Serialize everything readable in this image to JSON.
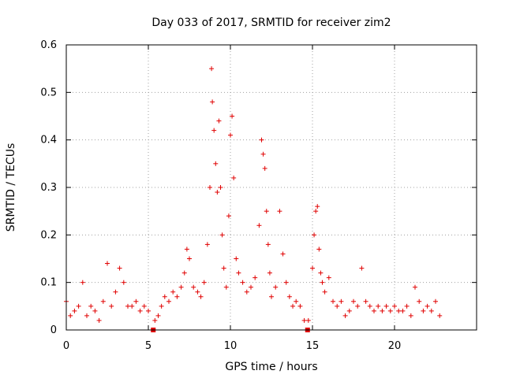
{
  "chart_data": {
    "type": "scatter",
    "title": "Day 033 of 2017, SRMTID for receiver zim2",
    "xlabel": "GPS time / hours",
    "ylabel": "SRMTID / TECUs",
    "xlim": [
      0,
      25
    ],
    "ylim": [
      0,
      0.6
    ],
    "x_ticks": [
      "0",
      "5",
      "10",
      "15",
      "20"
    ],
    "y_ticks": [
      "0",
      "0.1",
      "0.2",
      "0.3",
      "0.4",
      "0.5",
      "0.6"
    ],
    "grid": true,
    "marker": "plus",
    "color": "#e00000",
    "series": [
      {
        "name": "SRMTID",
        "x": [
          0.0,
          0.25,
          0.5,
          0.75,
          1.0,
          1.25,
          1.5,
          1.75,
          2.0,
          2.25,
          2.5,
          2.75,
          3.0,
          3.25,
          3.5,
          3.75,
          4.0,
          4.25,
          4.5,
          4.75,
          5.0,
          5.4,
          5.6,
          5.8,
          6.0,
          6.25,
          6.5,
          6.75,
          7.0,
          7.2,
          7.35,
          7.5,
          7.75,
          8.0,
          8.2,
          8.4,
          8.6,
          8.75,
          8.85,
          8.9,
          9.0,
          9.1,
          9.2,
          9.3,
          9.4,
          9.5,
          9.6,
          9.75,
          9.9,
          10.0,
          10.1,
          10.2,
          10.35,
          10.5,
          10.75,
          11.0,
          11.25,
          11.5,
          11.75,
          11.9,
          12.0,
          12.1,
          12.2,
          12.3,
          12.4,
          12.5,
          12.75,
          13.0,
          13.2,
          13.4,
          13.6,
          13.8,
          14.0,
          14.25,
          14.5,
          14.75,
          15.0,
          15.1,
          15.2,
          15.3,
          15.4,
          15.5,
          15.6,
          15.75,
          16.0,
          16.25,
          16.5,
          16.75,
          17.0,
          17.25,
          17.5,
          17.75,
          18.0,
          18.25,
          18.5,
          18.75,
          19.0,
          19.25,
          19.5,
          19.75,
          20.0,
          20.25,
          20.5,
          20.75,
          21.0,
          21.25,
          21.5,
          21.75,
          22.0,
          22.25,
          22.5,
          22.75
        ],
        "y": [
          0.06,
          0.03,
          0.04,
          0.05,
          0.1,
          0.03,
          0.05,
          0.04,
          0.02,
          0.06,
          0.14,
          0.05,
          0.08,
          0.13,
          0.1,
          0.05,
          0.05,
          0.06,
          0.04,
          0.05,
          0.04,
          0.02,
          0.03,
          0.05,
          0.07,
          0.06,
          0.08,
          0.07,
          0.09,
          0.12,
          0.17,
          0.15,
          0.09,
          0.08,
          0.07,
          0.1,
          0.18,
          0.3,
          0.55,
          0.48,
          0.42,
          0.35,
          0.29,
          0.44,
          0.3,
          0.2,
          0.13,
          0.09,
          0.24,
          0.41,
          0.45,
          0.32,
          0.15,
          0.12,
          0.1,
          0.08,
          0.09,
          0.11,
          0.22,
          0.4,
          0.37,
          0.34,
          0.25,
          0.18,
          0.12,
          0.07,
          0.09,
          0.25,
          0.16,
          0.1,
          0.07,
          0.05,
          0.06,
          0.05,
          0.02,
          0.02,
          0.13,
          0.2,
          0.25,
          0.26,
          0.17,
          0.12,
          0.1,
          0.08,
          0.11,
          0.06,
          0.05,
          0.06,
          0.03,
          0.04,
          0.06,
          0.05,
          0.13,
          0.06,
          0.05,
          0.04,
          0.05,
          0.04,
          0.05,
          0.04,
          0.05,
          0.04,
          0.04,
          0.05,
          0.03,
          0.09,
          0.06,
          0.04,
          0.05,
          0.04,
          0.06,
          0.03
        ]
      }
    ],
    "gap_markers_x": [
      5.3,
      14.7
    ]
  }
}
